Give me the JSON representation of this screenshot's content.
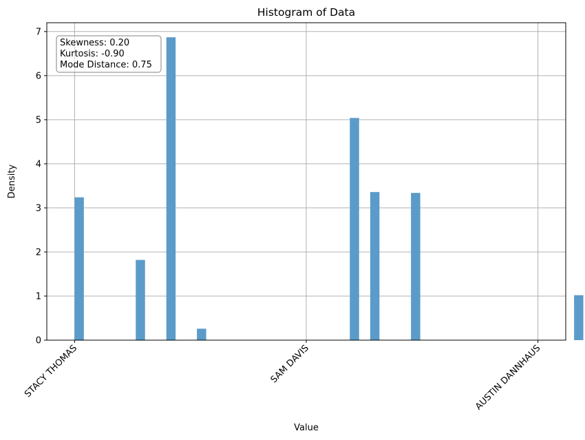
{
  "chart_data": {
    "type": "bar",
    "title": "Histogram of Data",
    "xlabel": "Value",
    "ylabel": "Density",
    "xlim": [
      -0.06,
      1.06
    ],
    "ylim": [
      0,
      7.2
    ],
    "grid": true,
    "x_ticks": [
      {
        "value": 0.0,
        "label": "STACY THOMAS"
      },
      {
        "value": 0.5,
        "label": "SAM DAVIS"
      },
      {
        "value": 1.0,
        "label": "AUSTIN DANNHAUS"
      }
    ],
    "y_ticks": [
      0,
      1,
      2,
      3,
      4,
      5,
      6,
      7
    ],
    "bin_width": 0.02,
    "series": [
      {
        "color": "#5b9bc9",
        "bins": [
          {
            "start": 0.0,
            "density": 3.24
          },
          {
            "start": 0.132,
            "density": 1.82
          },
          {
            "start": 0.198,
            "density": 6.87
          },
          {
            "start": 0.264,
            "density": 0.26
          },
          {
            "start": 0.594,
            "density": 5.04
          },
          {
            "start": 0.638,
            "density": 3.36
          },
          {
            "start": 0.726,
            "density": 3.34
          },
          {
            "start": 1.078,
            "density": 1.02
          }
        ]
      }
    ],
    "annotation": {
      "lines": [
        "Skewness: 0.20",
        "Kurtosis: -0.90",
        "Mode Distance: 0.75"
      ],
      "placement": "top-left"
    }
  }
}
